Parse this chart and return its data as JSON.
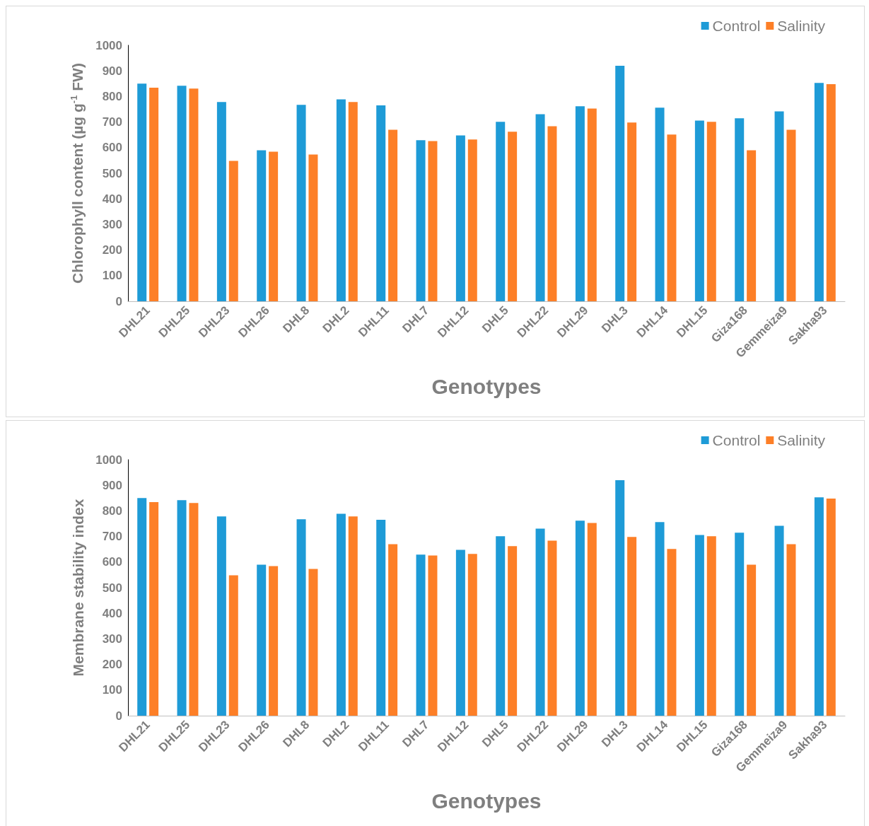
{
  "chart_data": [
    {
      "type": "bar",
      "xlabel": "Genotypes",
      "ylabel": "Chlorophyll content (µg g$^{-1}$ FW)",
      "categories": [
        "DHL21",
        "DHL25",
        "DHL23",
        "DHL26",
        "DHL8",
        "DHL2",
        "DHL11",
        "DHL7",
        "DHL12",
        "DHL5",
        "DHL22",
        "DHL29",
        "DHL3",
        "DHL14",
        "DHL15",
        "Giza168",
        "Gemmeiza9",
        "Sakha93"
      ],
      "series": [
        {
          "name": "Control",
          "color": "#1e9bd7",
          "values": [
            850,
            842,
            778,
            590,
            767,
            789,
            765,
            629,
            648,
            701,
            731,
            762,
            920,
            756,
            706,
            715,
            742,
            853
          ]
        },
        {
          "name": "Salinity",
          "color": "#fd7f27",
          "values": [
            834,
            831,
            548,
            584,
            573,
            778,
            670,
            626,
            632,
            662,
            684,
            753,
            698,
            651,
            701,
            590,
            670,
            848
          ]
        }
      ],
      "ylim": [
        0,
        1000
      ],
      "yticks": [
        0,
        100,
        200,
        300,
        400,
        500,
        600,
        700,
        800,
        900,
        1000
      ],
      "grid": false,
      "legend": "top right"
    },
    {
      "type": "bar",
      "xlabel": "Genotypes",
      "ylabel": "Membrane stability index",
      "categories": [
        "DHL21",
        "DHL25",
        "DHL23",
        "DHL26",
        "DHL8",
        "DHL2",
        "DHL11",
        "DHL7",
        "DHL12",
        "DHL5",
        "DHL22",
        "DHL29",
        "DHL3",
        "DHL14",
        "DHL15",
        "Giza168",
        "Gemmeiza9",
        "Sakha93"
      ],
      "series": [
        {
          "name": "Control",
          "color": "#1e9bd7",
          "values": [
            850,
            842,
            778,
            590,
            767,
            789,
            765,
            629,
            648,
            701,
            731,
            762,
            920,
            756,
            706,
            715,
            742,
            853
          ]
        },
        {
          "name": "Salinity",
          "color": "#fd7f27",
          "values": [
            834,
            831,
            548,
            584,
            573,
            778,
            670,
            626,
            632,
            662,
            684,
            753,
            698,
            651,
            701,
            590,
            670,
            848
          ]
        }
      ],
      "ylim": [
        0,
        1000
      ],
      "yticks": [
        0,
        100,
        200,
        300,
        400,
        500,
        600,
        700,
        800,
        900,
        1000
      ],
      "grid": false,
      "legend": "top right"
    }
  ]
}
